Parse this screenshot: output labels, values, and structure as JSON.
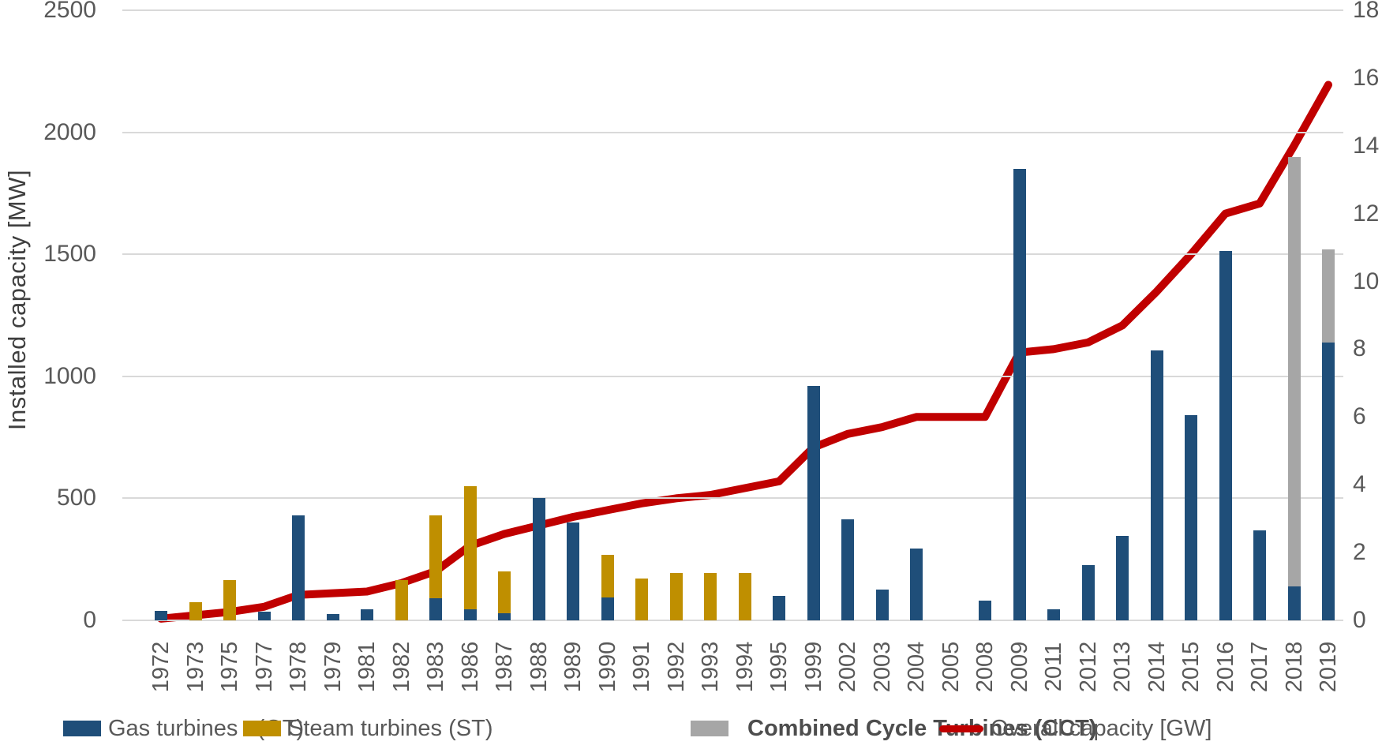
{
  "chart_data": {
    "type": "bar",
    "subtype": "stacked-bar-with-line",
    "title": "",
    "grid": true,
    "legend_position": "bottom",
    "categories": [
      "1972",
      "1973",
      "1975",
      "1977",
      "1978",
      "1979",
      "1981",
      "1982",
      "1983",
      "1986",
      "1987",
      "1988",
      "1989",
      "1990",
      "1991",
      "1992",
      "1993",
      "1994",
      "1995",
      "1999",
      "2002",
      "2003",
      "2004",
      "2005",
      "2008",
      "2009",
      "2011",
      "2012",
      "2013",
      "2014",
      "2015",
      "2016",
      "2017",
      "2018",
      "2019"
    ],
    "left_axis": {
      "label": "Installed capacity [MW]",
      "min": 0,
      "max": 2500,
      "ticks": [
        0,
        500,
        1000,
        1500,
        2000,
        2500
      ]
    },
    "right_axis": {
      "label": "",
      "min": 0,
      "max": 18,
      "ticks": [
        0,
        2,
        4,
        6,
        8,
        10,
        12,
        14,
        16,
        18
      ]
    },
    "series": [
      {
        "name": "Gas turbines   (GT)",
        "key": "gas-turbines-gt",
        "type": "bar",
        "axis": "left",
        "color": "#1F4E79",
        "legend_bold": false,
        "values": [
          40,
          0,
          0,
          35,
          430,
          25,
          45,
          0,
          90,
          45,
          30,
          500,
          400,
          95,
          0,
          0,
          0,
          0,
          100,
          960,
          415,
          125,
          295,
          0,
          80,
          1850,
          45,
          225,
          345,
          1105,
          840,
          1515,
          370,
          140,
          1140
        ]
      },
      {
        "name": "Steam turbines (ST)",
        "key": "steam-turbines-st",
        "type": "bar",
        "axis": "left",
        "color": "#BF8F00",
        "legend_bold": false,
        "values": [
          0,
          75,
          165,
          0,
          0,
          0,
          0,
          165,
          340,
          505,
          170,
          0,
          0,
          175,
          170,
          195,
          195,
          195,
          0,
          0,
          0,
          0,
          0,
          0,
          0,
          0,
          0,
          0,
          0,
          0,
          0,
          0,
          0,
          0,
          0
        ]
      },
      {
        "name": "Combined Cycle Turbines (CCT)",
        "key": "combined-cycle-turbines-cct",
        "type": "bar",
        "axis": "left",
        "color": "#A6A6A6",
        "legend_bold": true,
        "values": [
          0,
          0,
          0,
          0,
          0,
          0,
          0,
          0,
          0,
          0,
          0,
          0,
          0,
          0,
          0,
          0,
          0,
          0,
          0,
          0,
          0,
          0,
          0,
          0,
          0,
          0,
          0,
          0,
          0,
          0,
          0,
          0,
          0,
          1760,
          380
        ]
      },
      {
        "name": "Overall capacity [GW]",
        "key": "overall-capacity-gw",
        "type": "line",
        "axis": "right",
        "color": "#C00000",
        "legend_bold": false,
        "values": [
          0.05,
          0.15,
          0.25,
          0.4,
          0.75,
          0.8,
          0.85,
          1.1,
          1.45,
          2.2,
          2.55,
          2.8,
          3.05,
          3.25,
          3.45,
          3.6,
          3.7,
          3.9,
          4.1,
          5.1,
          5.5,
          5.7,
          6.0,
          6.0,
          6.0,
          7.9,
          8.0,
          8.2,
          8.7,
          9.7,
          10.8,
          12.0,
          12.3,
          14.0,
          15.8
        ]
      }
    ]
  },
  "colors": {
    "axis_text": "#595959",
    "axis_title_text": "#3F3F3F",
    "gridline": "#D9D9D9",
    "background": "#FFFFFF"
  }
}
